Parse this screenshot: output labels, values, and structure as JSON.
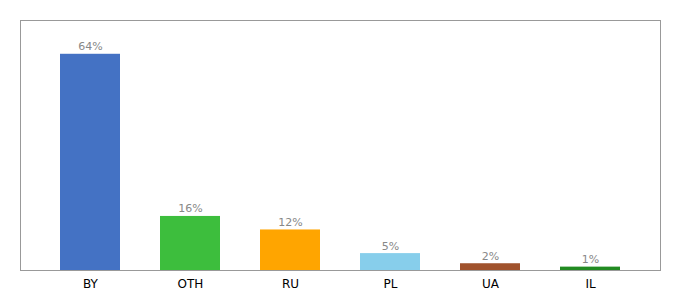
{
  "chart_data": {
    "type": "bar",
    "categories": [
      "BY",
      "OTH",
      "RU",
      "PL",
      "UA",
      "IL"
    ],
    "values": [
      64,
      16,
      12,
      5,
      2,
      1
    ],
    "value_labels": [
      "64%",
      "16%",
      "12%",
      "5%",
      "2%",
      "1%"
    ],
    "colors": [
      "#4472C4",
      "#3DBE3D",
      "#FFA500",
      "#87CEEB",
      "#A0522D",
      "#228B22"
    ],
    "ylim": [
      0,
      74
    ],
    "data_labels": true,
    "tick_labels": "x"
  }
}
